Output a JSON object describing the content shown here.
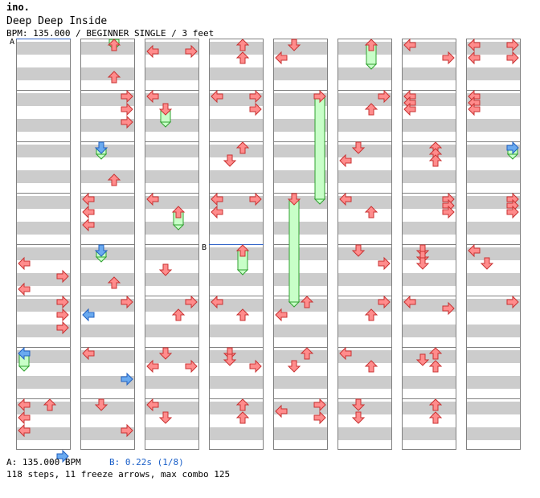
{
  "header": {
    "brand": "ino.",
    "song_title": "Deep Deep Inside",
    "meta": "BPM: 135.000 / BEGINNER SINGLE / 3 feet"
  },
  "markers": {
    "a": "A",
    "b": "B"
  },
  "footer": {
    "bpm_label": "A: 135.000 BPM",
    "stop_label": "B: 0.22s (1/8)",
    "summary": "118 steps, 11 freeze arrows, max combo 125"
  },
  "colors": {
    "normal_arrow": "#ff8c8c",
    "normal_arrow_stroke": "#c83232",
    "quarter_arrow": "#6aaaf0",
    "quarter_arrow_stroke": "#2060c0",
    "freeze_body": "#c8ffc8",
    "freeze_stroke": "#30a030",
    "stripe": "#cccccc",
    "bpm_line": "#3264c8"
  },
  "chart": {
    "lanes": [
      "left",
      "down",
      "up",
      "right"
    ],
    "columns": [
      {
        "notes": [
          {
            "m": 4,
            "r": 2,
            "l": "left"
          },
          {
            "m": 4,
            "r": 4,
            "l": "right"
          },
          {
            "m": 4,
            "r": 6,
            "l": "left"
          },
          {
            "m": 5,
            "r": 0,
            "l": "right"
          },
          {
            "m": 5,
            "r": 2,
            "l": "right"
          },
          {
            "m": 5,
            "r": 4,
            "l": "right"
          },
          {
            "m": 6,
            "r": 0,
            "l": "left",
            "c": "q"
          },
          {
            "m": 6,
            "r": 8,
            "l": "up"
          },
          {
            "m": 7,
            "r": 0,
            "l": "left"
          },
          {
            "m": 7,
            "r": 2,
            "l": "left"
          },
          {
            "m": 7,
            "r": 4,
            "l": "left"
          },
          {
            "m": 7,
            "r": 8,
            "l": "right",
            "c": "q"
          }
        ],
        "freezes": [
          {
            "l": "left",
            "s": 6,
            "sr": 0,
            "e": 6,
            "er": 2
          }
        ]
      },
      {
        "notes": [
          {
            "m": 0,
            "r": 0,
            "l": "up"
          },
          {
            "m": 0,
            "r": 5,
            "l": "up"
          },
          {
            "m": 1,
            "r": 0,
            "l": "right"
          },
          {
            "m": 1,
            "r": 2,
            "l": "right"
          },
          {
            "m": 1,
            "r": 4,
            "l": "right"
          },
          {
            "m": 2,
            "r": 0,
            "l": "down",
            "c": "q"
          },
          {
            "m": 2,
            "r": 5,
            "l": "up"
          },
          {
            "m": 3,
            "r": 0,
            "l": "left"
          },
          {
            "m": 3,
            "r": 2,
            "l": "left"
          },
          {
            "m": 3,
            "r": 4,
            "l": "left"
          },
          {
            "m": 4,
            "r": 0,
            "l": "down",
            "c": "q"
          },
          {
            "m": 4,
            "r": 5,
            "l": "up"
          },
          {
            "m": 5,
            "r": 0,
            "l": "right"
          },
          {
            "m": 5,
            "r": 2,
            "l": "left",
            "c": "q"
          },
          {
            "m": 6,
            "r": 0,
            "l": "left"
          },
          {
            "m": 6,
            "r": 4,
            "l": "right",
            "c": "q"
          },
          {
            "m": 7,
            "r": 0,
            "l": "down"
          },
          {
            "m": 7,
            "r": 4,
            "l": "right"
          }
        ],
        "freezes": [
          {
            "l": "up",
            "s": -1,
            "sr": 7,
            "e": 0,
            "er": 0
          },
          {
            "l": "down",
            "s": 2,
            "sr": 0,
            "e": 2,
            "er": 1
          },
          {
            "l": "down",
            "s": 4,
            "sr": 0,
            "e": 4,
            "er": 1
          }
        ]
      },
      {
        "notes": [
          {
            "m": 0,
            "r": 1,
            "l": "left"
          },
          {
            "m": 0,
            "r": 1,
            "l": "right"
          },
          {
            "m": 1,
            "r": 0,
            "l": "left"
          },
          {
            "m": 1,
            "r": 2,
            "l": "down"
          },
          {
            "m": 3,
            "r": 0,
            "l": "left"
          },
          {
            "m": 3,
            "r": 2,
            "l": "up"
          },
          {
            "m": 4,
            "r": 3,
            "l": "down"
          },
          {
            "m": 5,
            "r": 0,
            "l": "right"
          },
          {
            "m": 5,
            "r": 2,
            "l": "up"
          },
          {
            "m": 6,
            "r": 0,
            "l": "down"
          },
          {
            "m": 6,
            "r": 2,
            "l": "left"
          },
          {
            "m": 6,
            "r": 2,
            "l": "right"
          },
          {
            "m": 7,
            "r": 0,
            "l": "left"
          },
          {
            "m": 7,
            "r": 2,
            "l": "down"
          }
        ],
        "freezes": [
          {
            "l": "down",
            "s": 1,
            "sr": 2,
            "e": 1,
            "er": 4
          },
          {
            "l": "up",
            "s": 3,
            "sr": 2,
            "e": 3,
            "er": 4
          }
        ]
      },
      {
        "notes": [
          {
            "m": 0,
            "r": 0,
            "l": "up"
          },
          {
            "m": 0,
            "r": 2,
            "l": "up"
          },
          {
            "m": 1,
            "r": 0,
            "l": "left"
          },
          {
            "m": 1,
            "r": 0,
            "l": "right"
          },
          {
            "m": 1,
            "r": 2,
            "l": "right"
          },
          {
            "m": 2,
            "r": 0,
            "l": "up"
          },
          {
            "m": 2,
            "r": 2,
            "l": "down"
          },
          {
            "m": 3,
            "r": 0,
            "l": "left"
          },
          {
            "m": 3,
            "r": 0,
            "l": "right"
          },
          {
            "m": 3,
            "r": 2,
            "l": "left"
          },
          {
            "m": 4,
            "r": 0,
            "l": "up"
          },
          {
            "m": 5,
            "r": 0,
            "l": "left"
          },
          {
            "m": 5,
            "r": 2,
            "l": "up"
          },
          {
            "m": 6,
            "r": 0,
            "l": "down"
          },
          {
            "m": 6,
            "r": 1,
            "l": "down"
          },
          {
            "m": 6,
            "r": 2,
            "l": "right"
          },
          {
            "m": 7,
            "r": 0,
            "l": "up"
          },
          {
            "m": 7,
            "r": 2,
            "l": "up"
          }
        ],
        "freezes": [
          {
            "l": "up",
            "s": 4,
            "sr": 0,
            "e": 4,
            "er": 3
          }
        ]
      },
      {
        "notes": [
          {
            "m": 0,
            "r": 0,
            "l": "down"
          },
          {
            "m": 0,
            "r": 2,
            "l": "left"
          },
          {
            "m": 1,
            "r": 0,
            "l": "right"
          },
          {
            "m": 3,
            "r": 0,
            "l": "down"
          },
          {
            "m": 5,
            "r": 0,
            "l": "up"
          },
          {
            "m": 5,
            "r": 2,
            "l": "left"
          },
          {
            "m": 6,
            "r": 0,
            "l": "up"
          },
          {
            "m": 6,
            "r": 2,
            "l": "down"
          },
          {
            "m": 7,
            "r": 0,
            "l": "right"
          },
          {
            "m": 7,
            "r": 1,
            "l": "left"
          },
          {
            "m": 7,
            "r": 2,
            "l": "right"
          }
        ],
        "freezes": [
          {
            "l": "right",
            "s": 1,
            "sr": 0,
            "e": 3,
            "er": 0
          },
          {
            "l": "down",
            "s": 3,
            "sr": 0,
            "e": 5,
            "er": 0
          }
        ]
      },
      {
        "notes": [
          {
            "m": 0,
            "r": 0,
            "l": "up"
          },
          {
            "m": 1,
            "r": 0,
            "l": "right"
          },
          {
            "m": 1,
            "r": 2,
            "l": "up"
          },
          {
            "m": 2,
            "r": 0,
            "l": "down"
          },
          {
            "m": 2,
            "r": 2,
            "l": "left"
          },
          {
            "m": 3,
            "r": 0,
            "l": "left"
          },
          {
            "m": 3,
            "r": 2,
            "l": "up"
          },
          {
            "m": 4,
            "r": 0,
            "l": "down"
          },
          {
            "m": 4,
            "r": 2,
            "l": "right"
          },
          {
            "m": 5,
            "r": 0,
            "l": "right"
          },
          {
            "m": 5,
            "r": 2,
            "l": "up"
          },
          {
            "m": 6,
            "r": 0,
            "l": "left"
          },
          {
            "m": 6,
            "r": 2,
            "l": "up"
          },
          {
            "m": 7,
            "r": 0,
            "l": "down"
          },
          {
            "m": 7,
            "r": 2,
            "l": "down"
          }
        ],
        "freezes": [
          {
            "l": "up",
            "s": 0,
            "sr": 0,
            "e": 0,
            "er": 3
          }
        ]
      },
      {
        "notes": [
          {
            "m": 0,
            "r": 0,
            "l": "left"
          },
          {
            "m": 0,
            "r": 2,
            "l": "right"
          },
          {
            "m": 1,
            "r": 0,
            "l": "left"
          },
          {
            "m": 1,
            "r": 1,
            "l": "left"
          },
          {
            "m": 1,
            "r": 2,
            "l": "left"
          },
          {
            "m": 2,
            "r": 0,
            "l": "up"
          },
          {
            "m": 2,
            "r": 1,
            "l": "up"
          },
          {
            "m": 2,
            "r": 2,
            "l": "up"
          },
          {
            "m": 3,
            "r": 0,
            "l": "right"
          },
          {
            "m": 3,
            "r": 1,
            "l": "right"
          },
          {
            "m": 3,
            "r": 2,
            "l": "right"
          },
          {
            "m": 4,
            "r": 0,
            "l": "down"
          },
          {
            "m": 4,
            "r": 1,
            "l": "down"
          },
          {
            "m": 4,
            "r": 2,
            "l": "down"
          },
          {
            "m": 5,
            "r": 0,
            "l": "left"
          },
          {
            "m": 5,
            "r": 1,
            "l": "right"
          },
          {
            "m": 6,
            "r": 0,
            "l": "up"
          },
          {
            "m": 6,
            "r": 1,
            "l": "down"
          },
          {
            "m": 6,
            "r": 2,
            "l": "up"
          },
          {
            "m": 7,
            "r": 0,
            "l": "up"
          },
          {
            "m": 7,
            "r": 2,
            "l": "up"
          }
        ],
        "freezes": []
      },
      {
        "notes": [
          {
            "m": 0,
            "r": 0,
            "l": "left"
          },
          {
            "m": 0,
            "r": 0,
            "l": "right"
          },
          {
            "m": 0,
            "r": 2,
            "l": "left"
          },
          {
            "m": 0,
            "r": 2,
            "l": "right"
          },
          {
            "m": 1,
            "r": 0,
            "l": "left"
          },
          {
            "m": 1,
            "r": 1,
            "l": "left"
          },
          {
            "m": 1,
            "r": 2,
            "l": "left"
          },
          {
            "m": 2,
            "r": 0,
            "l": "right",
            "c": "q"
          },
          {
            "m": 3,
            "r": 0,
            "l": "right"
          },
          {
            "m": 3,
            "r": 1,
            "l": "right"
          },
          {
            "m": 3,
            "r": 2,
            "l": "right"
          },
          {
            "m": 4,
            "r": 0,
            "l": "left"
          },
          {
            "m": 4,
            "r": 2,
            "l": "down"
          },
          {
            "m": 5,
            "r": 0,
            "l": "right"
          }
        ],
        "freezes": [
          {
            "l": "right",
            "s": 2,
            "sr": 0,
            "e": 2,
            "er": 1
          }
        ]
      }
    ]
  }
}
